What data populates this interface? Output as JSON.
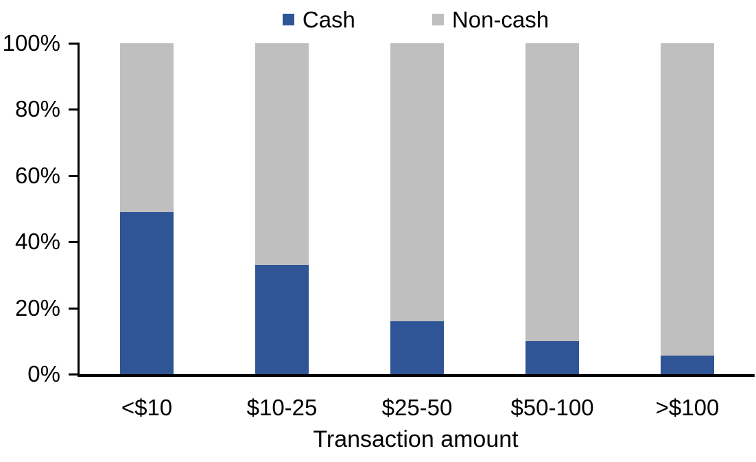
{
  "chart_data": {
    "type": "bar",
    "variant": "100%-stacked-column",
    "title": "",
    "xlabel": "Transaction amount",
    "ylabel": "",
    "categories": [
      "<$10",
      "$10-25",
      "$25-50",
      "$50-100",
      ">$100"
    ],
    "series": [
      {
        "name": "Cash",
        "color": "#2F5597",
        "values": [
          49,
          33,
          16,
          10,
          5.5
        ]
      },
      {
        "name": "Non-cash",
        "color": "#BFBFBF",
        "values": [
          51,
          67,
          84,
          90,
          94.5
        ]
      }
    ],
    "ylim": [
      0,
      100
    ],
    "yticks": [
      "0%",
      "20%",
      "40%",
      "60%",
      "80%",
      "100%"
    ],
    "ytick_values": [
      0,
      20,
      40,
      60,
      80,
      100
    ],
    "grid": false,
    "legend_position": "top",
    "axis_color": "#000000"
  }
}
